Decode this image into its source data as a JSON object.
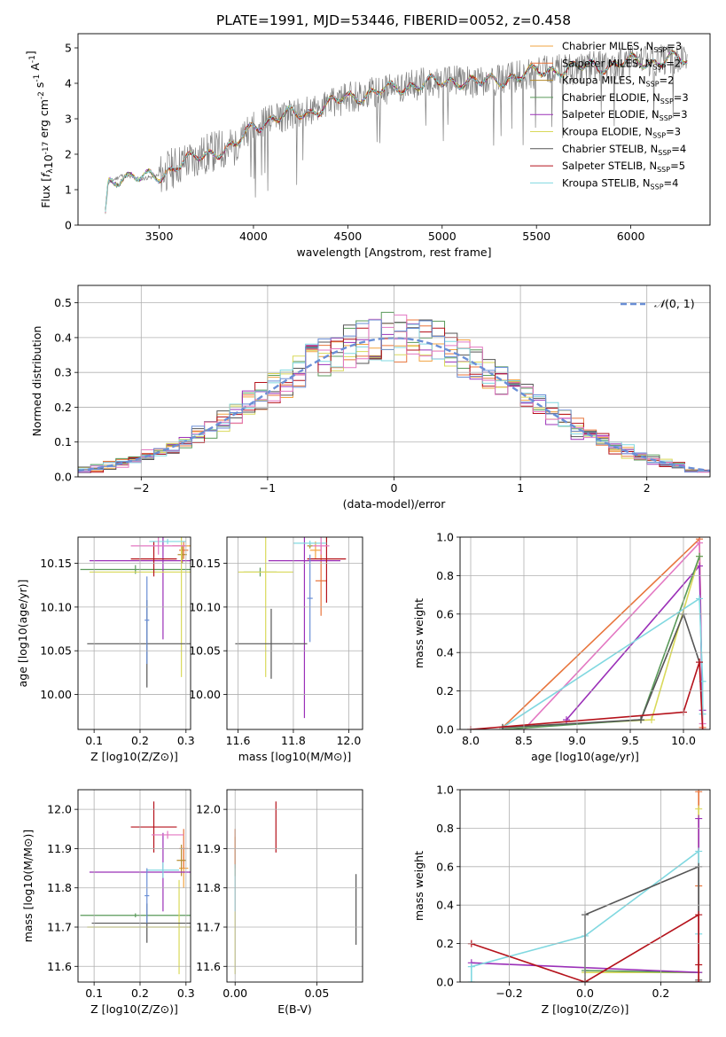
{
  "figure": {
    "title": "PLATE=1991, MJD=53446, FIBERID=0052, z=0.458",
    "colors": {
      "Chabrier MILES": "#f1a340",
      "Salpeter MILES": "#e8743b",
      "Kroupa MILES": "#b58b2c",
      "Chabrier ELODIE": "#5a9a5a",
      "Salpeter ELODIE": "#9b30b8",
      "Kroupa ELODIE": "#d9d95a",
      "Chabrier STELIB": "#555555",
      "Salpeter STELIB": "#b5121b",
      "Kroupa STELIB": "#80d8e0",
      "pink": "#e377c2",
      "blue": "#6a8fd6",
      "data": "#808080",
      "gaussian": "#6a8fd6"
    }
  },
  "chart_data": [
    {
      "id": "spectrum",
      "type": "line",
      "xlabel": "wavelength [Angstrom, rest frame]",
      "ylabel_parts": [
        "Flux [",
        "f",
        "λ",
        "10",
        "-17",
        " erg cm",
        "-2",
        " s",
        "-1",
        " A",
        "-1",
        "]"
      ],
      "xlim": [
        3070,
        6420
      ],
      "ylim": [
        0,
        5.4
      ],
      "xticks": [
        3500,
        4000,
        4500,
        5000,
        5500,
        6000
      ],
      "yticks": [
        0,
        1,
        2,
        3,
        4,
        5
      ],
      "legend": {
        "placement": "upper-right",
        "entries": [
          {
            "name": "Chabrier MILES",
            "nssp": "3"
          },
          {
            "name": "Salpeter MILES",
            "nssp": "2"
          },
          {
            "name": "Kroupa MILES",
            "nssp": "2"
          },
          {
            "name": "Chabrier ELODIE",
            "nssp": "3"
          },
          {
            "name": "Salpeter ELODIE",
            "nssp": "3"
          },
          {
            "name": "Kroupa ELODIE",
            "nssp": "3"
          },
          {
            "name": "Chabrier STELIB",
            "nssp": "4"
          },
          {
            "name": "Salpeter STELIB",
            "nssp": "5"
          },
          {
            "name": "Kroupa STELIB",
            "nssp": "4"
          }
        ]
      },
      "continuum": [
        [
          3210,
          0.0
        ],
        [
          3230,
          1.2
        ],
        [
          3300,
          1.4
        ],
        [
          3400,
          1.3
        ],
        [
          3500,
          1.4
        ],
        [
          3600,
          1.7
        ],
        [
          3700,
          1.9
        ],
        [
          3800,
          2.1
        ],
        [
          3900,
          2.2
        ],
        [
          4000,
          2.8
        ],
        [
          4100,
          3.0
        ],
        [
          4200,
          3.1
        ],
        [
          4300,
          3.2
        ],
        [
          4400,
          3.4
        ],
        [
          4500,
          3.6
        ],
        [
          4600,
          3.7
        ],
        [
          4700,
          3.8
        ],
        [
          4800,
          3.9
        ],
        [
          4900,
          4.0
        ],
        [
          5000,
          4.0
        ],
        [
          5100,
          4.1
        ],
        [
          5200,
          4.0
        ],
        [
          5300,
          4.1
        ],
        [
          5400,
          4.2
        ],
        [
          5500,
          4.3
        ],
        [
          5600,
          4.4
        ],
        [
          5700,
          4.4
        ],
        [
          5800,
          4.5
        ],
        [
          5900,
          4.5
        ],
        [
          6000,
          4.6
        ],
        [
          6100,
          4.6
        ],
        [
          6200,
          4.7
        ],
        [
          6300,
          4.6
        ]
      ]
    },
    {
      "id": "residuals",
      "type": "histogram",
      "xlabel": "(data-model)/error",
      "ylabel": "Normed distribution",
      "xlim": [
        -2.5,
        2.5
      ],
      "ylim": [
        0,
        0.55
      ],
      "xticks": [
        -2,
        -1,
        0,
        1,
        2
      ],
      "yticks": [
        0.0,
        0.1,
        0.2,
        0.3,
        0.4,
        0.5
      ],
      "legend": {
        "placement": "upper-right",
        "entries": [
          {
            "name_parts": [
              "𝒩",
              "(0, 1)"
            ]
          }
        ]
      },
      "bin_width": 0.1,
      "x_start": -2.5
    },
    {
      "id": "age-vs-Z",
      "type": "errorbar",
      "xlabel": "Z [log10(Z/Z⊙)]",
      "ylabel": "age  [log10(age/yr)]",
      "xlim": [
        0.065,
        0.31
      ],
      "ylim": [
        9.96,
        10.18
      ],
      "xticks": [
        0.1,
        0.2,
        0.3
      ],
      "yticks": [
        10.0,
        10.05,
        10.1,
        10.15
      ],
      "points": [
        {
          "c": "Chabrier MILES",
          "x": 0.29,
          "y": 10.17,
          "xerr": 0.02,
          "yerr": 0.005
        },
        {
          "c": "Salpeter MILES",
          "x": 0.295,
          "y": 10.165,
          "xerr": 0.01,
          "yerr": 0.01
        },
        {
          "c": "Kroupa MILES",
          "x": 0.292,
          "y": 10.16,
          "xerr": 0.01,
          "yerr": 0.01
        },
        {
          "c": "Chabrier ELODIE",
          "x": 0.19,
          "y": 10.143,
          "xerr": 0.12,
          "yerr": 0.005
        },
        {
          "c": "Salpeter ELODIE",
          "x": 0.25,
          "y": 10.153,
          "xerr": 0.16,
          "yerr": 0.09
        },
        {
          "c": "Kroupa ELODIE",
          "x": 0.29,
          "y": 10.14,
          "xerr": 0.2,
          "yerr": 0.12
        },
        {
          "c": "Chabrier STELIB",
          "x": 0.215,
          "y": 10.058,
          "xerr": 0.13,
          "yerr": 0.05
        },
        {
          "c": "Salpeter STELIB",
          "x": 0.23,
          "y": 10.155,
          "xerr": 0.05,
          "yerr": 0.02
        },
        {
          "c": "Kroupa STELIB",
          "x": 0.26,
          "y": 10.175,
          "xerr": 0.04,
          "yerr": 0.003
        },
        {
          "c": "pink",
          "x": 0.24,
          "y": 10.17,
          "xerr": 0.06,
          "yerr": 0.01
        },
        {
          "c": "blue",
          "x": 0.215,
          "y": 10.085,
          "xerr": 0.005,
          "yerr": 0.05
        }
      ]
    },
    {
      "id": "age-vs-mass",
      "type": "errorbar",
      "xlabel": "mass [log10(M/M⊙)]",
      "xlim": [
        11.56,
        12.05
      ],
      "ylim": [
        9.96,
        10.18
      ],
      "xticks": [
        11.6,
        11.8,
        12.0
      ],
      "yticks": [
        10.0,
        10.05,
        10.1,
        10.15
      ],
      "points": [
        {
          "c": "Chabrier MILES",
          "x": 11.88,
          "y": 10.165,
          "xerr": 0.02,
          "yerr": 0.01
        },
        {
          "c": "Salpeter MILES",
          "x": 11.9,
          "y": 10.13,
          "xerr": 0.02,
          "yerr": 0.04
        },
        {
          "c": "Kroupa MILES",
          "x": 11.86,
          "y": 10.17,
          "xerr": 0.01,
          "yerr": 0.003
        },
        {
          "c": "Chabrier ELODIE",
          "x": 11.68,
          "y": 10.14,
          "xerr": 0.06,
          "yerr": 0.005
        },
        {
          "c": "Salpeter ELODIE",
          "x": 11.84,
          "y": 10.153,
          "xerr": 0.13,
          "yerr": 0.18
        },
        {
          "c": "Kroupa ELODIE",
          "x": 11.7,
          "y": 10.14,
          "xerr": 0.1,
          "yerr": 0.12
        },
        {
          "c": "Chabrier STELIB",
          "x": 11.72,
          "y": 10.058,
          "xerr": 0.13,
          "yerr": 0.04
        },
        {
          "c": "Salpeter STELIB",
          "x": 11.92,
          "y": 10.155,
          "xerr": 0.07,
          "yerr": 0.05
        },
        {
          "c": "Kroupa STELIB",
          "x": 11.86,
          "y": 10.173,
          "xerr": 0.06,
          "yerr": 0.003
        },
        {
          "c": "pink",
          "x": 11.9,
          "y": 10.17,
          "xerr": 0.03,
          "yerr": 0.01
        },
        {
          "c": "blue",
          "x": 11.86,
          "y": 10.11,
          "xerr": 0.01,
          "yerr": 0.05
        }
      ]
    },
    {
      "id": "mass-weight-vs-age",
      "type": "line",
      "xlabel": "age  [log10(age/yr)]",
      "ylabel": "mass weight",
      "xlim": [
        7.9,
        10.25
      ],
      "ylim": [
        0,
        1.0
      ],
      "xticks": [
        8.0,
        8.5,
        9.0,
        9.5,
        10.0
      ],
      "yticks": [
        0.0,
        0.2,
        0.4,
        0.6,
        0.8,
        1.0
      ],
      "series": [
        {
          "c": "Salpeter MILES",
          "x": [
            8.3,
            10.15,
            10.18
          ],
          "y": [
            0.01,
            0.99,
            0.01
          ]
        },
        {
          "c": "pink",
          "x": [
            8.5,
            10.15,
            10.18
          ],
          "y": [
            0.0,
            0.97,
            0.03
          ]
        },
        {
          "c": "Salpeter ELODIE",
          "x": [
            8.9,
            10.15,
            10.18
          ],
          "y": [
            0.05,
            0.85,
            0.1
          ]
        },
        {
          "c": "Kroupa ELODIE",
          "x": [
            8.3,
            9.7,
            10.15
          ],
          "y": [
            0.01,
            0.05,
            0.9
          ]
        },
        {
          "c": "Chabrier ELODIE",
          "x": [
            8.3,
            9.6,
            10.15
          ],
          "y": [
            0.0,
            0.05,
            0.9
          ]
        },
        {
          "c": "Kroupa STELIB",
          "x": [
            8.3,
            10.15,
            10.18,
            10.18
          ],
          "y": [
            0.01,
            0.68,
            0.25,
            0.08
          ]
        },
        {
          "c": "Chabrier STELIB",
          "x": [
            8.3,
            9.6,
            10.0,
            10.15
          ],
          "y": [
            0.01,
            0.05,
            0.6,
            0.35
          ]
        },
        {
          "c": "Salpeter STELIB",
          "x": [
            8.0,
            10.0,
            10.15,
            10.18
          ],
          "y": [
            0.0,
            0.09,
            0.35,
            0.0
          ]
        }
      ]
    },
    {
      "id": "mass-vs-Z",
      "type": "errorbar",
      "xlabel": "Z [log10(Z/Z⊙)]",
      "ylabel": "mass [log10(M/M⊙)]",
      "xlim": [
        0.065,
        0.31
      ],
      "ylim": [
        11.56,
        12.05
      ],
      "xticks": [
        0.1,
        0.2,
        0.3
      ],
      "yticks": [
        11.6,
        11.7,
        11.8,
        11.9,
        12.0
      ],
      "points": [
        {
          "c": "Chabrier MILES",
          "x": 0.295,
          "y": 11.85,
          "xerr": 0.01,
          "yerr": 0.05
        },
        {
          "c": "Salpeter MILES",
          "x": 0.295,
          "y": 11.9,
          "xerr": 0.01,
          "yerr": 0.05
        },
        {
          "c": "Kroupa MILES",
          "x": 0.29,
          "y": 11.87,
          "xerr": 0.01,
          "yerr": 0.04
        },
        {
          "c": "Chabrier ELODIE",
          "x": 0.19,
          "y": 11.73,
          "xerr": 0.12,
          "yerr": 0.005
        },
        {
          "c": "Salpeter ELODIE",
          "x": 0.25,
          "y": 11.84,
          "xerr": 0.16,
          "yerr": 0.1
        },
        {
          "c": "Kroupa ELODIE",
          "x": 0.285,
          "y": 11.7,
          "xerr": 0.2,
          "yerr": 0.12
        },
        {
          "c": "Chabrier STELIB",
          "x": 0.215,
          "y": 11.71,
          "xerr": 0.12,
          "yerr": 0.05
        },
        {
          "c": "Salpeter STELIB",
          "x": 0.23,
          "y": 11.955,
          "xerr": 0.05,
          "yerr": 0.065
        },
        {
          "c": "Kroupa STELIB",
          "x": 0.25,
          "y": 11.845,
          "xerr": 0.035,
          "yerr": 0.02
        },
        {
          "c": "pink",
          "x": 0.26,
          "y": 11.935,
          "xerr": 0.035,
          "yerr": 0.01
        },
        {
          "c": "blue",
          "x": 0.215,
          "y": 11.78,
          "xerr": 0.005,
          "yerr": 0.07
        }
      ]
    },
    {
      "id": "mass-vs-ebv",
      "type": "errorbar",
      "xlabel": "E(B-V)",
      "xlim": [
        -0.005,
        0.078
      ],
      "ylim": [
        11.56,
        12.05
      ],
      "xticks": [
        0.0,
        0.05
      ],
      "yticks": [
        11.6,
        11.7,
        11.8,
        11.9,
        12.0
      ],
      "points": [
        {
          "c": "Chabrier MILES",
          "x": 0.0,
          "y": 11.88,
          "xerr": 0.0,
          "yerr": 0.05
        },
        {
          "c": "Salpeter MILES",
          "x": 0.0,
          "y": 11.9,
          "xerr": 0.0,
          "yerr": 0.05
        },
        {
          "c": "Kroupa ELODIE",
          "x": 0.0,
          "y": 11.66,
          "xerr": 0.0,
          "yerr": 0.08
        },
        {
          "c": "Kroupa STELIB",
          "x": 0.0,
          "y": 11.8,
          "xerr": 0.0,
          "yerr": 0.06
        },
        {
          "c": "Salpeter STELIB",
          "x": 0.025,
          "y": 11.955,
          "xerr": 0.0,
          "yerr": 0.065
        },
        {
          "c": "Chabrier STELIB",
          "x": 0.074,
          "y": 11.745,
          "xerr": 0.0,
          "yerr": 0.09
        }
      ]
    },
    {
      "id": "mass-weight-vs-Z",
      "type": "line",
      "xlabel": "Z [log10(Z/Z⊙)]",
      "ylabel": "mass weight",
      "xlim": [
        -0.33,
        0.33
      ],
      "ylim": [
        0,
        1.0
      ],
      "xticks": [
        -0.2,
        0.0,
        0.2
      ],
      "yticks": [
        0.0,
        0.2,
        0.4,
        0.6,
        0.8,
        1.0
      ],
      "series": [
        {
          "c": "Salpeter MILES",
          "x": [
            0.3,
            0.3,
            0.3
          ],
          "y": [
            0.0,
            0.5,
            0.99
          ]
        },
        {
          "c": "Kroupa ELODIE",
          "x": [
            0.0,
            0.3,
            0.3
          ],
          "y": [
            0.05,
            0.05,
            0.9
          ]
        },
        {
          "c": "Chabrier ELODIE",
          "x": [
            0.0,
            0.3
          ],
          "y": [
            0.06,
            0.05
          ]
        },
        {
          "c": "Salpeter ELODIE",
          "x": [
            -0.3,
            0.3,
            0.3
          ],
          "y": [
            0.1,
            0.05,
            0.85
          ]
        },
        {
          "c": "Kroupa STELIB",
          "x": [
            -0.3,
            -0.3,
            0.0,
            0.3,
            0.3
          ],
          "y": [
            0.0,
            0.08,
            0.24,
            0.68,
            0.25
          ]
        },
        {
          "c": "Chabrier STELIB",
          "x": [
            0.0,
            0.0,
            0.3,
            0.3
          ],
          "y": [
            0.0,
            0.35,
            0.6,
            0.01
          ]
        },
        {
          "c": "Salpeter STELIB",
          "x": [
            -0.3,
            0.0,
            0.3,
            0.3,
            0.3
          ],
          "y": [
            0.2,
            0.0,
            0.35,
            0.09,
            0.0
          ]
        }
      ]
    }
  ]
}
